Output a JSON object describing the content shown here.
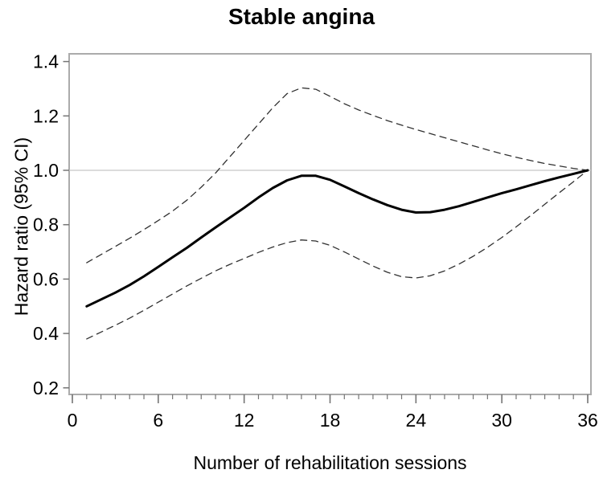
{
  "chart_data": {
    "type": "line",
    "title": "Stable angina",
    "xlabel": "Number of rehabilitation sessions",
    "ylabel": "Hazard ratio (95% CI)",
    "xlim": [
      0,
      36
    ],
    "ylim": [
      0.2,
      1.4
    ],
    "x_major_ticks": [
      0,
      6,
      12,
      18,
      24,
      30,
      36
    ],
    "x_minor_tick_step": 1,
    "y_ticks": [
      "0.2",
      "0.4",
      "0.6",
      "0.8",
      "1.0",
      "1.2",
      "1.4"
    ],
    "reference_line": 1.0,
    "grid": "off",
    "legend": "none",
    "colors": {
      "line": "#000000",
      "ci": "#303030",
      "frame": "#ababab",
      "refline": "#c6c6c6",
      "tick": "#757575",
      "text": "#000000"
    },
    "x": [
      1,
      2,
      3,
      4,
      5,
      6,
      7,
      8,
      9,
      10,
      11,
      12,
      13,
      14,
      15,
      16,
      17,
      18,
      19,
      20,
      21,
      22,
      23,
      24,
      25,
      26,
      27,
      28,
      29,
      30,
      31,
      32,
      33,
      34,
      35,
      36
    ],
    "series": [
      {
        "id": "ci-upper",
        "name": "95% CI upper bound",
        "style": "dashed",
        "width": 1.3,
        "values": [
          0.66,
          0.69,
          0.72,
          0.75,
          0.782,
          0.815,
          0.85,
          0.89,
          0.938,
          0.99,
          1.05,
          1.11,
          1.17,
          1.23,
          1.282,
          1.303,
          1.298,
          1.272,
          1.245,
          1.222,
          1.202,
          1.183,
          1.166,
          1.15,
          1.135,
          1.12,
          1.105,
          1.09,
          1.075,
          1.061,
          1.048,
          1.036,
          1.025,
          1.016,
          1.007,
          1.0
        ]
      },
      {
        "id": "ci-lower",
        "name": "95% CI lower bound",
        "style": "dashed",
        "width": 1.3,
        "values": [
          0.38,
          0.405,
          0.43,
          0.456,
          0.485,
          0.515,
          0.545,
          0.575,
          0.603,
          0.63,
          0.654,
          0.676,
          0.698,
          0.718,
          0.734,
          0.744,
          0.74,
          0.724,
          0.7,
          0.674,
          0.648,
          0.625,
          0.609,
          0.604,
          0.612,
          0.63,
          0.655,
          0.684,
          0.717,
          0.753,
          0.792,
          0.833,
          0.875,
          0.917,
          0.958,
          1.0
        ]
      },
      {
        "id": "hazard-ratio",
        "name": "Hazard ratio",
        "style": "solid",
        "width": 3,
        "values": [
          0.5,
          0.525,
          0.55,
          0.578,
          0.61,
          0.645,
          0.68,
          0.715,
          0.753,
          0.79,
          0.826,
          0.862,
          0.9,
          0.935,
          0.963,
          0.98,
          0.98,
          0.965,
          0.941,
          0.916,
          0.893,
          0.872,
          0.855,
          0.845,
          0.846,
          0.855,
          0.868,
          0.884,
          0.9,
          0.916,
          0.93,
          0.945,
          0.96,
          0.974,
          0.987,
          1.0
        ]
      }
    ]
  }
}
